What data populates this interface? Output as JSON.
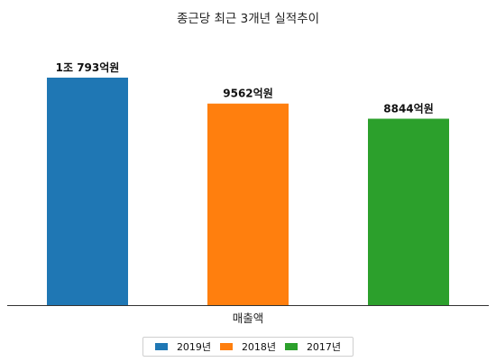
{
  "chart_data": {
    "type": "bar",
    "title": "종근당 최근 3개년 실적추이",
    "xlabel": "매출액",
    "ylabel": "",
    "categories": [
      "매출액"
    ],
    "series": [
      {
        "name": "2019년",
        "values": [
          10793
        ],
        "label": "1조 793억원",
        "color": "#1f77b4"
      },
      {
        "name": "2018년",
        "values": [
          9562
        ],
        "label": "9562억원",
        "color": "#ff7f0e"
      },
      {
        "name": "2017년",
        "values": [
          8844
        ],
        "label": "8844억원",
        "color": "#2ca02c"
      }
    ],
    "ylim": [
      0,
      10793
    ],
    "grid": false,
    "legend_position": "bottom-center"
  }
}
